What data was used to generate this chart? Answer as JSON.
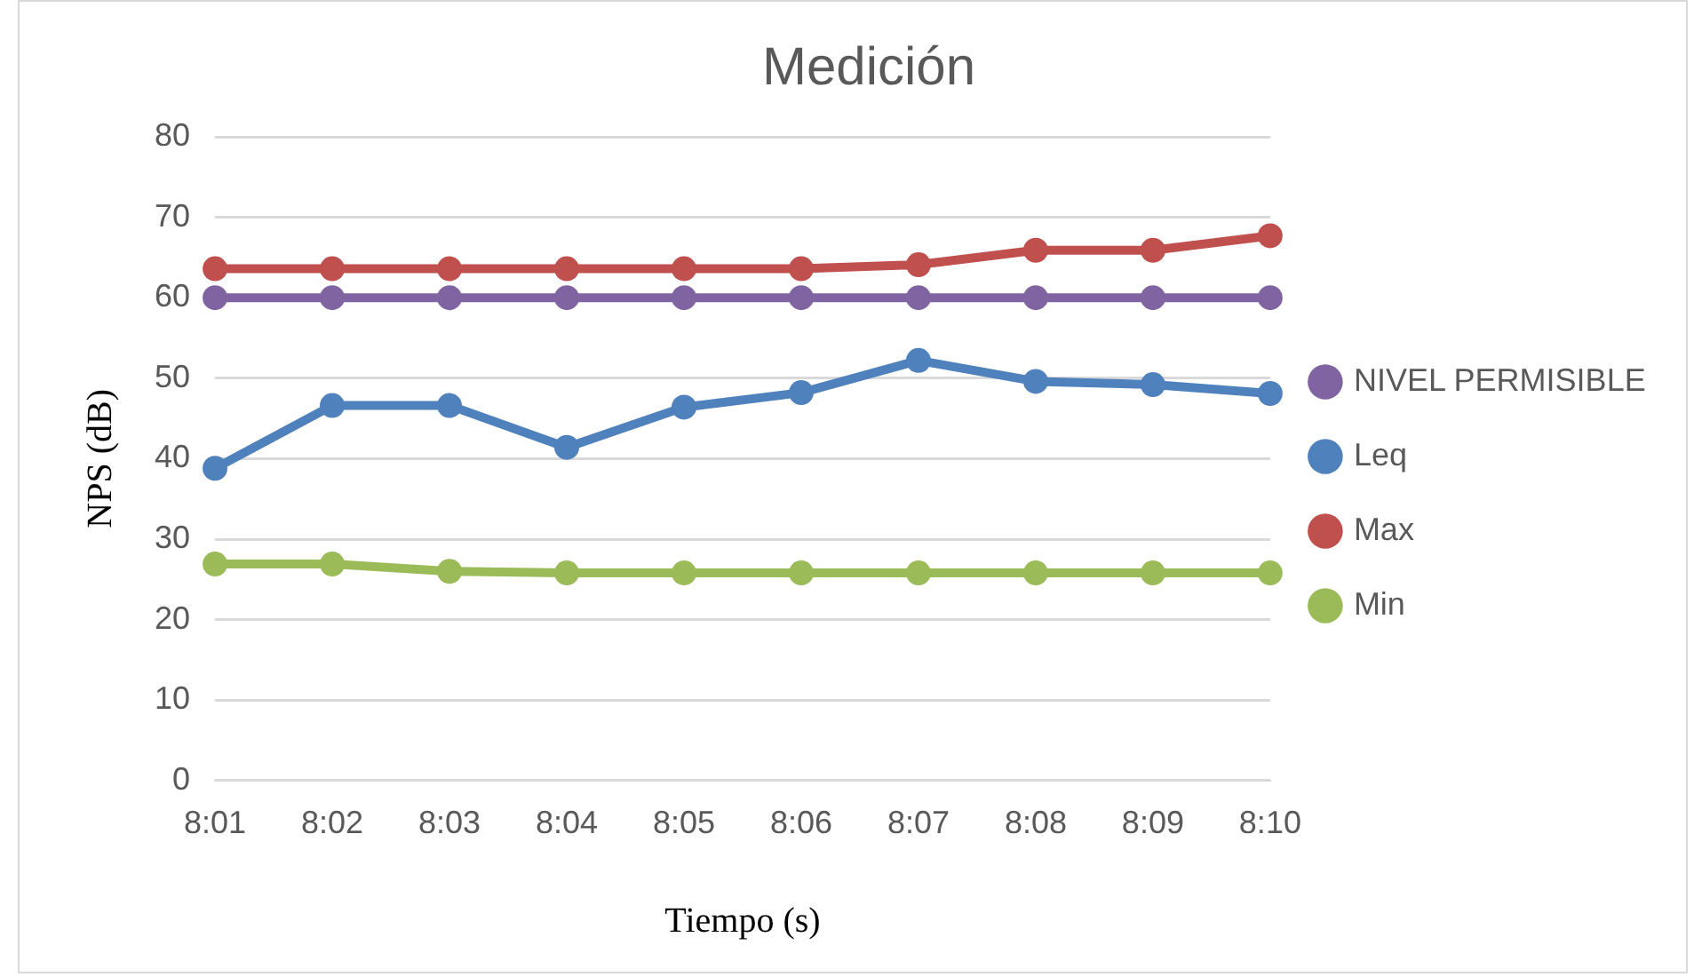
{
  "chart_data": {
    "type": "line",
    "title": "Medición",
    "xlabel": "Tiempo (s)",
    "ylabel": "NPS (dB)",
    "categories": [
      "8:01",
      "8:02",
      "8:03",
      "8:04",
      "8:05",
      "8:06",
      "8:07",
      "8:08",
      "8:09",
      "8:10"
    ],
    "series": [
      {
        "name": "NIVEL PERMISIBLE",
        "color": "#8064a2",
        "values": [
          60,
          60,
          60,
          60,
          60,
          60,
          60,
          60,
          60,
          60
        ]
      },
      {
        "name": "Leq",
        "color": "#4f81bd",
        "values": [
          38.8,
          46.6,
          46.6,
          41.4,
          46.4,
          48.2,
          52.2,
          49.6,
          49.2,
          48.1
        ]
      },
      {
        "name": "Max",
        "color": "#c0504d",
        "values": [
          63.6,
          63.6,
          63.6,
          63.6,
          63.6,
          63.6,
          64.1,
          65.9,
          65.9,
          67.7
        ]
      },
      {
        "name": "Min",
        "color": "#9bbb59",
        "values": [
          26.9,
          26.9,
          26.0,
          25.8,
          25.8,
          25.8,
          25.8,
          25.8,
          25.8,
          25.8
        ]
      }
    ],
    "ylim": [
      0,
      80
    ],
    "yticks": [
      0,
      10,
      20,
      30,
      40,
      50,
      60,
      70,
      80
    ],
    "grid": "y",
    "legend": "right",
    "marker": "circle",
    "line_style": "solid"
  }
}
